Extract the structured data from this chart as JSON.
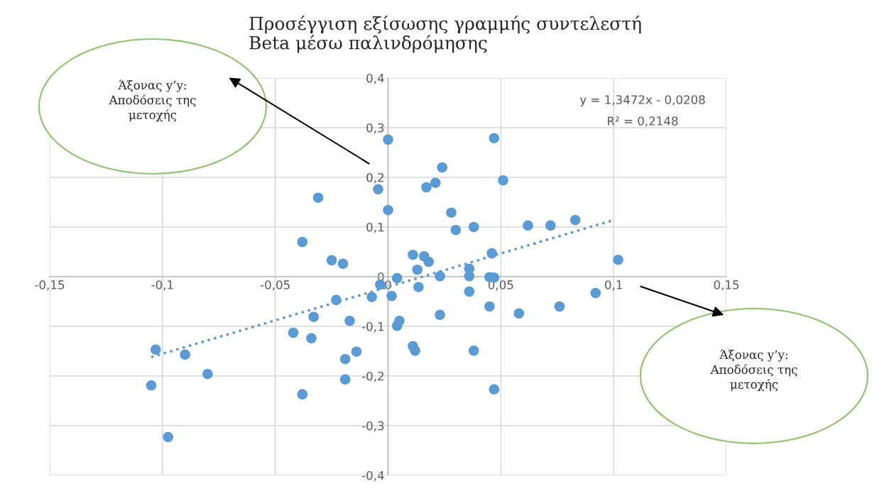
{
  "chart_data": {
    "type": "scatter",
    "title": "Προσέγγιση εξίσωσης γραμμής συντελεστή\nBeta μέσω παλινδρόμησης",
    "xlim": [
      -0.15,
      0.15
    ],
    "ylim": [
      -0.4,
      0.4
    ],
    "xticks": [
      {
        "value": -0.15,
        "label": "-0,15"
      },
      {
        "value": -0.1,
        "label": "-0,1"
      },
      {
        "value": -0.05,
        "label": "-0,05"
      },
      0,
      {
        "value": 0.05,
        "label": "0,05"
      },
      {
        "value": 0.1,
        "label": "0,1"
      },
      {
        "value": 0.15,
        "label": "0,15"
      }
    ],
    "yticks": [
      {
        "value": -0.4,
        "label": "-0,4"
      },
      {
        "value": -0.3,
        "label": "-0,3"
      },
      {
        "value": -0.2,
        "label": "-0,2"
      },
      {
        "value": -0.1,
        "label": "-0,1"
      },
      0,
      {
        "value": 0.1,
        "label": "0,1"
      },
      {
        "value": 0.2,
        "label": "0,2"
      },
      {
        "value": 0.3,
        "label": "0,3"
      },
      {
        "value": 0.4,
        "label": "0,4"
      }
    ],
    "grid": true,
    "marker": "circle",
    "series": [
      {
        "color": "#5b9bd5",
        "x": [
          0,
          -0.031,
          -0.0044,
          0,
          -0.038,
          -0.025,
          -0.02,
          0.047,
          0.024,
          0.021,
          0.017,
          0.051,
          0.028,
          0.03,
          0.038,
          0.062,
          0.072,
          0.083,
          0.011,
          0.016,
          0.018,
          0.013,
          0.046,
          0.102,
          0.036,
          0.036,
          0.023,
          0.004,
          0.045,
          0.047,
          0.0135,
          0.036,
          0.0016,
          0.092,
          0.045,
          0.076,
          0.058,
          0.023,
          0.005,
          0.004,
          0.011,
          0.012,
          0.038,
          0.047,
          -0.0035,
          -0.0072,
          -0.023,
          -0.033,
          -0.017,
          -0.042,
          -0.034,
          -0.014,
          -0.019,
          -0.019,
          -0.038,
          -0.103,
          -0.09,
          -0.08,
          -0.105,
          -0.0975
        ],
        "values": [
          0.276,
          0.159,
          0.176,
          0.134,
          0.07,
          0.033,
          0.026,
          0.279,
          0.22,
          0.189,
          0.18,
          0.194,
          0.129,
          0.094,
          0.1,
          0.103,
          0.103,
          0.114,
          0.044,
          0.041,
          0.03,
          0.014,
          0.047,
          0.034,
          0.016,
          0.001,
          0.001,
          -0.003,
          -0.001,
          -0.002,
          -0.021,
          -0.03,
          -0.039,
          -0.033,
          -0.06,
          -0.06,
          -0.074,
          -0.077,
          -0.089,
          -0.099,
          -0.14,
          -0.149,
          -0.149,
          -0.227,
          -0.016,
          -0.041,
          -0.047,
          -0.081,
          -0.089,
          -0.113,
          -0.124,
          -0.151,
          -0.166,
          -0.207,
          -0.237,
          -0.147,
          -0.157,
          -0.196,
          -0.219,
          -0.323
        ]
      },
      {
        "type": "line",
        "color": "#5b9bd5",
        "line_style": "dotted",
        "marker": "none",
        "x": [
          -0.105,
          0.1
        ],
        "values": [
          -0.162,
          0.114
        ]
      }
    ],
    "annotations": [
      "y = 1,3472x - 0,0208",
      "R² = 0,2148",
      "Άξονας y’y:\nΑποδόσεις της\nμετοχής",
      "Άξονας y’y:\nΑποδόσεις της\nμετοχής"
    ]
  }
}
